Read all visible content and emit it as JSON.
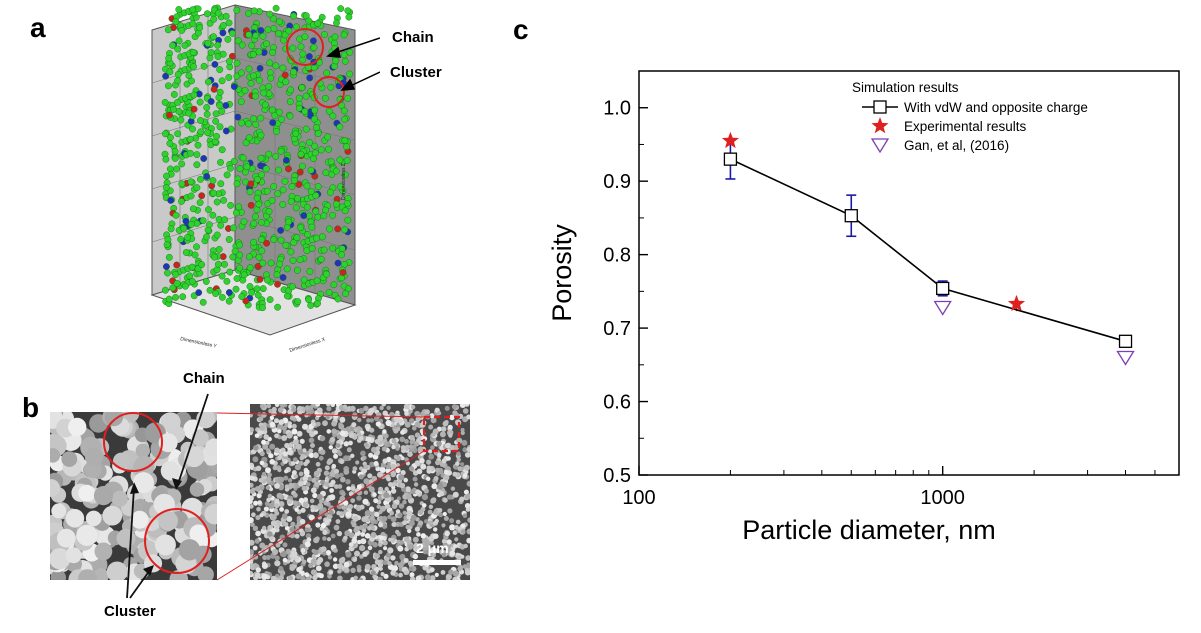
{
  "panels": {
    "a": "a",
    "b": "b",
    "c": "c"
  },
  "panel_a": {
    "annotations": {
      "chain": "Chain",
      "cluster": "Cluster"
    },
    "axis_labels": {
      "x": "Dimensionless X",
      "y": "Dimensionless Y",
      "z": "Dimensionless Z"
    },
    "particle_colors": {
      "main": "#2fd12f",
      "secondary_blue": "#2233bb",
      "secondary_red": "#cc2222"
    }
  },
  "panel_b": {
    "annotations": {
      "chain": "Chain",
      "cluster": "Cluster"
    },
    "scalebar": "2 μm",
    "highlight_color": "#e02020"
  },
  "chart_data": {
    "type": "scatter",
    "xlabel": "Particle diameter, nm",
    "ylabel": "Porosity",
    "x_scale": "log",
    "xlim": [
      100,
      6000
    ],
    "ylim": [
      0.5,
      1.05
    ],
    "x_ticks": [
      100,
      1000
    ],
    "x_tick_labels": [
      "100",
      "1000"
    ],
    "y_ticks": [
      0.5,
      0.6,
      0.7,
      0.8,
      0.9,
      1.0
    ],
    "y_tick_labels": [
      "0.5",
      "0.6",
      "0.7",
      "0.8",
      "0.9",
      "1.0"
    ],
    "legend_title": "Simulation results",
    "legend_position": "top-right",
    "series": [
      {
        "name": "With vdW and opposite charge",
        "marker": "open-square",
        "line": true,
        "color": "#000000",
        "errorbar_color": "#1a1aa8",
        "x": [
          200,
          500,
          1000,
          4000
        ],
        "y": [
          0.93,
          0.853,
          0.754,
          0.682
        ],
        "error": [
          0.027,
          0.028,
          0.01,
          0.006
        ]
      },
      {
        "name": "Experimental results",
        "marker": "star",
        "line": false,
        "color": "#e0201f",
        "x": [
          200,
          1750
        ],
        "y": [
          0.955,
          0.733
        ],
        "error": [
          0,
          0.01
        ]
      },
      {
        "name": "Gan, et al, (2016)",
        "marker": "open-triangle-down",
        "line": false,
        "color": "#7b3fb5",
        "x": [
          1000,
          4000
        ],
        "y": [
          0.728,
          0.66
        ]
      }
    ]
  }
}
